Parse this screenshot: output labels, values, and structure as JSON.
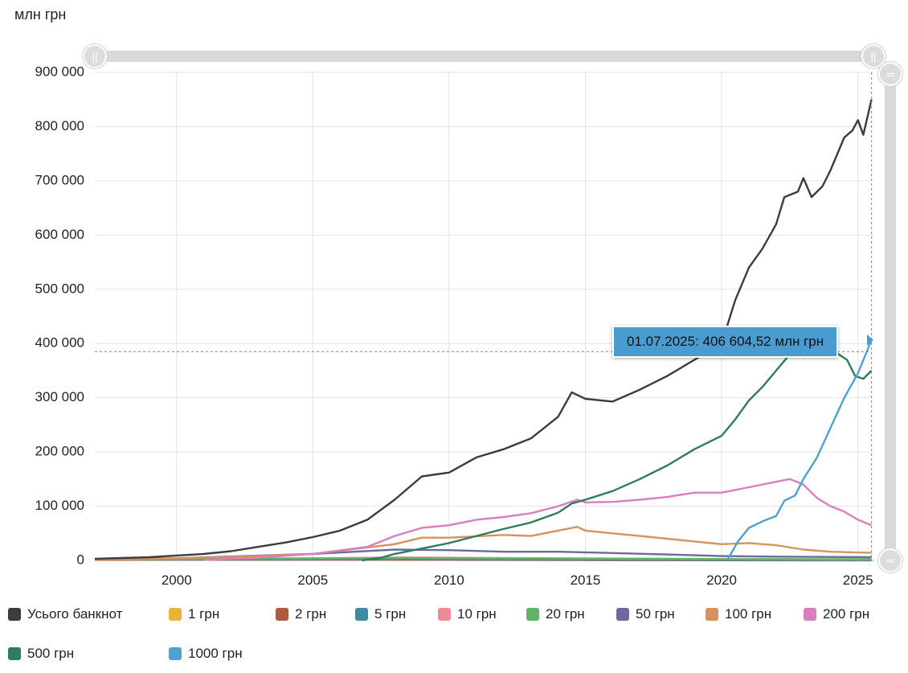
{
  "unit_label": "млн грн",
  "tooltip": {
    "text": "01.07.2025: 406 604,52 млн грн"
  },
  "zoom": {
    "handle_left_icon": "||",
    "handle_right_icon": "||",
    "handle_top_icon": "═",
    "handle_bottom_icon": "═"
  },
  "chart_data": {
    "type": "line",
    "title": "",
    "ylabel": "млн грн",
    "xlim": [
      1997.0,
      2025.6
    ],
    "ylim": [
      0,
      900000
    ],
    "y_ticks": [
      "0",
      "100 000",
      "200 000",
      "300 000",
      "400 000",
      "500 000",
      "600 000",
      "700 000",
      "800 000",
      "900 000"
    ],
    "y_tick_values": [
      0,
      100000,
      200000,
      300000,
      400000,
      500000,
      600000,
      700000,
      800000,
      900000
    ],
    "x_ticks": [
      "2000",
      "2005",
      "2010",
      "2015",
      "2020",
      "2025"
    ],
    "x_tick_values": [
      2000,
      2005,
      2010,
      2015,
      2020,
      2025
    ],
    "crosshair": {
      "x": 2025.5,
      "y": 385000
    },
    "legend_position": "bottom",
    "series": [
      {
        "name": "Усього банкнот",
        "color": "#3c3c3c",
        "points": [
          [
            1997,
            3000
          ],
          [
            1998,
            4500
          ],
          [
            1999,
            6000
          ],
          [
            2000,
            9000
          ],
          [
            2001,
            12000
          ],
          [
            2002,
            17000
          ],
          [
            2003,
            25000
          ],
          [
            2004,
            33000
          ],
          [
            2005,
            43000
          ],
          [
            2006,
            55000
          ],
          [
            2007,
            75000
          ],
          [
            2008,
            112000
          ],
          [
            2009,
            155000
          ],
          [
            2010,
            162000
          ],
          [
            2011,
            190000
          ],
          [
            2012,
            205000
          ],
          [
            2013,
            225000
          ],
          [
            2014,
            265000
          ],
          [
            2014.5,
            310000
          ],
          [
            2015,
            298000
          ],
          [
            2016,
            293000
          ],
          [
            2017,
            315000
          ],
          [
            2018,
            340000
          ],
          [
            2019,
            370000
          ],
          [
            2020,
            400000
          ],
          [
            2020.5,
            480000
          ],
          [
            2021,
            540000
          ],
          [
            2021.5,
            575000
          ],
          [
            2022,
            620000
          ],
          [
            2022.3,
            670000
          ],
          [
            2022.8,
            680000
          ],
          [
            2023,
            705000
          ],
          [
            2023.3,
            670000
          ],
          [
            2023.7,
            690000
          ],
          [
            2024,
            720000
          ],
          [
            2024.5,
            780000
          ],
          [
            2024.8,
            793000
          ],
          [
            2025,
            812000
          ],
          [
            2025.2,
            785000
          ],
          [
            2025.5,
            850000
          ]
        ]
      },
      {
        "name": "1 грн",
        "color": "#e9b33a",
        "points": [
          [
            1997,
            1200
          ],
          [
            2000,
            1600
          ],
          [
            2005,
            2000
          ],
          [
            2010,
            1500
          ],
          [
            2015,
            900
          ],
          [
            2020,
            500
          ],
          [
            2025.5,
            300
          ]
        ]
      },
      {
        "name": "2 грн",
        "color": "#b05a3c",
        "points": [
          [
            1997,
            900
          ],
          [
            2000,
            1200
          ],
          [
            2005,
            1500
          ],
          [
            2010,
            1000
          ],
          [
            2015,
            600
          ],
          [
            2020,
            300
          ],
          [
            2025.5,
            200
          ]
        ]
      },
      {
        "name": "5 грн",
        "color": "#3e8aa3",
        "points": [
          [
            1997,
            1500
          ],
          [
            2000,
            2000
          ],
          [
            2005,
            2500
          ],
          [
            2010,
            2200
          ],
          [
            2015,
            1500
          ],
          [
            2020,
            1000
          ],
          [
            2025.5,
            600
          ]
        ]
      },
      {
        "name": "10 грн",
        "color": "#ef8a98",
        "points": [
          [
            1997,
            2000
          ],
          [
            2000,
            3000
          ],
          [
            2005,
            4000
          ],
          [
            2008,
            5500
          ],
          [
            2010,
            5000
          ],
          [
            2015,
            3500
          ],
          [
            2020,
            2500
          ],
          [
            2025.5,
            1800
          ]
        ]
      },
      {
        "name": "20 грн",
        "color": "#63b36b",
        "points": [
          [
            1997,
            1500
          ],
          [
            2000,
            2500
          ],
          [
            2005,
            3500
          ],
          [
            2008,
            4500
          ],
          [
            2010,
            4000
          ],
          [
            2015,
            3500
          ],
          [
            2020,
            2500
          ],
          [
            2025.5,
            2200
          ]
        ]
      },
      {
        "name": "50 грн",
        "color": "#6a6a9c",
        "points": [
          [
            1997,
            2000
          ],
          [
            2000,
            4000
          ],
          [
            2005,
            12000
          ],
          [
            2008,
            20000
          ],
          [
            2010,
            19000
          ],
          [
            2012,
            16000
          ],
          [
            2014,
            16000
          ],
          [
            2015,
            15000
          ],
          [
            2018,
            11000
          ],
          [
            2020,
            8000
          ],
          [
            2022,
            7000
          ],
          [
            2025.5,
            6000
          ]
        ]
      },
      {
        "name": "100 грн",
        "color": "#d6925f",
        "points": [
          [
            1997,
            1500
          ],
          [
            2000,
            3500
          ],
          [
            2003,
            8000
          ],
          [
            2005,
            12000
          ],
          [
            2008,
            30000
          ],
          [
            2009,
            42000
          ],
          [
            2010,
            42000
          ],
          [
            2012,
            47000
          ],
          [
            2013,
            45000
          ],
          [
            2014,
            55000
          ],
          [
            2014.7,
            62000
          ],
          [
            2015,
            55000
          ],
          [
            2016,
            50000
          ],
          [
            2017,
            45000
          ],
          [
            2018,
            40000
          ],
          [
            2019,
            35000
          ],
          [
            2020,
            30000
          ],
          [
            2021,
            32000
          ],
          [
            2022,
            28000
          ],
          [
            2023,
            20000
          ],
          [
            2024,
            16000
          ],
          [
            2025.5,
            14000
          ]
        ]
      },
      {
        "name": "200 грн",
        "color": "#d97fc0",
        "points": [
          [
            2001,
            1000
          ],
          [
            2003,
            5000
          ],
          [
            2005,
            12000
          ],
          [
            2007,
            25000
          ],
          [
            2008,
            45000
          ],
          [
            2009,
            60000
          ],
          [
            2010,
            65000
          ],
          [
            2011,
            75000
          ],
          [
            2012,
            80000
          ],
          [
            2013,
            87000
          ],
          [
            2014,
            100000
          ],
          [
            2014.7,
            112000
          ],
          [
            2015,
            107000
          ],
          [
            2016,
            108000
          ],
          [
            2017,
            112000
          ],
          [
            2018,
            117000
          ],
          [
            2019,
            125000
          ],
          [
            2020,
            125000
          ],
          [
            2021,
            135000
          ],
          [
            2022,
            145000
          ],
          [
            2022.5,
            150000
          ],
          [
            2023,
            140000
          ],
          [
            2023.5,
            115000
          ],
          [
            2024,
            100000
          ],
          [
            2024.5,
            90000
          ],
          [
            2025,
            75000
          ],
          [
            2025.5,
            65000
          ]
        ]
      },
      {
        "name": "500 грн",
        "color": "#2e7d5b",
        "points": [
          [
            2006.8,
            0
          ],
          [
            2007.5,
            5000
          ],
          [
            2008,
            12000
          ],
          [
            2009,
            22000
          ],
          [
            2010,
            32000
          ],
          [
            2011,
            45000
          ],
          [
            2012,
            58000
          ],
          [
            2013,
            70000
          ],
          [
            2014,
            88000
          ],
          [
            2014.5,
            105000
          ],
          [
            2015,
            112000
          ],
          [
            2016,
            128000
          ],
          [
            2017,
            150000
          ],
          [
            2018,
            175000
          ],
          [
            2019,
            205000
          ],
          [
            2020,
            230000
          ],
          [
            2020.5,
            260000
          ],
          [
            2021,
            295000
          ],
          [
            2021.5,
            320000
          ],
          [
            2022,
            350000
          ],
          [
            2022.5,
            380000
          ],
          [
            2023,
            375000
          ],
          [
            2024,
            390000
          ],
          [
            2024.6,
            370000
          ],
          [
            2024.9,
            340000
          ],
          [
            2025.2,
            335000
          ],
          [
            2025.5,
            350000
          ]
        ]
      },
      {
        "name": "1000 грн",
        "color": "#4ea2cf",
        "points": [
          [
            2020.2,
            0
          ],
          [
            2020.6,
            35000
          ],
          [
            2021,
            60000
          ],
          [
            2021.5,
            72000
          ],
          [
            2022,
            82000
          ],
          [
            2022.3,
            110000
          ],
          [
            2022.7,
            120000
          ],
          [
            2023,
            150000
          ],
          [
            2023.5,
            190000
          ],
          [
            2024,
            245000
          ],
          [
            2024.5,
            300000
          ],
          [
            2025,
            345000
          ],
          [
            2025.5,
            406604
          ]
        ]
      }
    ]
  }
}
